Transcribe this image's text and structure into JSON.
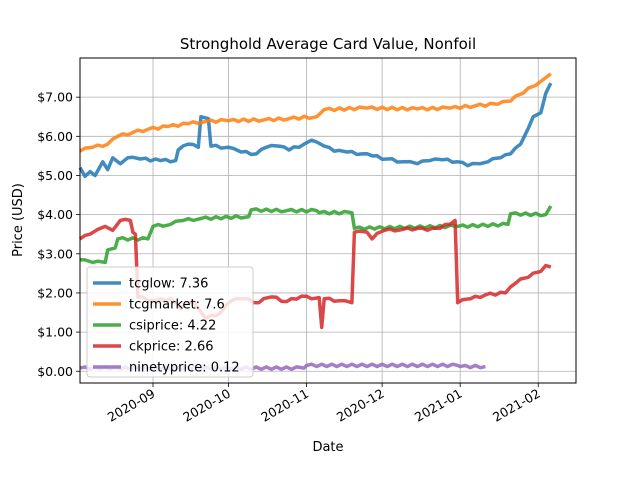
{
  "chart_data": {
    "type": "line",
    "title": "Stronghold Average Card Value, Nonfoil",
    "xlabel": "Date",
    "ylabel": "Price (USD)",
    "xlim": [
      "2020-08-03",
      "2021-02-16"
    ],
    "ylim": [
      -0.3,
      8.0
    ],
    "y_ticks": [
      0,
      1,
      2,
      3,
      4,
      5,
      6,
      7
    ],
    "y_tick_labels": [
      "$0.00",
      "$1.00",
      "$2.00",
      "$3.00",
      "$4.00",
      "$5.00",
      "$6.00",
      "$7.00"
    ],
    "x_ticks": [
      "2020-09-01",
      "2020-10-01",
      "2020-11-01",
      "2020-12-01",
      "2021-01-01",
      "2021-02-01"
    ],
    "x_tick_labels": [
      "2020-09",
      "2020-10",
      "2020-11",
      "2020-12",
      "2021-01",
      "2021-02"
    ],
    "grid": true,
    "legend_position": "lower-left",
    "series": [
      {
        "name": "tcglow: 7.36",
        "color": "#1f77b4",
        "points": [
          [
            "2020-08-03",
            5.2
          ],
          [
            "2020-08-05",
            4.98
          ],
          [
            "2020-08-07",
            5.1
          ],
          [
            "2020-08-09",
            5.0
          ],
          [
            "2020-08-12",
            5.35
          ],
          [
            "2020-08-14",
            5.15
          ],
          [
            "2020-08-16",
            5.45
          ],
          [
            "2020-08-19",
            5.3
          ],
          [
            "2020-08-22",
            5.45
          ],
          [
            "2020-08-27",
            5.42
          ],
          [
            "2020-09-04",
            5.38
          ],
          [
            "2020-09-10",
            5.38
          ],
          [
            "2020-09-11",
            5.65
          ],
          [
            "2020-09-15",
            5.8
          ],
          [
            "2020-09-19",
            5.72
          ],
          [
            "2020-09-20",
            6.5
          ],
          [
            "2020-09-23",
            6.45
          ],
          [
            "2020-09-24",
            5.75
          ],
          [
            "2020-10-01",
            5.72
          ],
          [
            "2020-10-06",
            5.6
          ],
          [
            "2020-10-12",
            5.55
          ],
          [
            "2020-10-16",
            5.72
          ],
          [
            "2020-10-21",
            5.75
          ],
          [
            "2020-10-25",
            5.65
          ],
          [
            "2020-10-31",
            5.8
          ],
          [
            "2020-11-03",
            5.9
          ],
          [
            "2020-11-08",
            5.75
          ],
          [
            "2020-11-12",
            5.62
          ],
          [
            "2020-11-17",
            5.6
          ],
          [
            "2020-11-23",
            5.55
          ],
          [
            "2020-11-27",
            5.5
          ],
          [
            "2020-12-03",
            5.42
          ],
          [
            "2020-12-10",
            5.35
          ],
          [
            "2020-12-15",
            5.3
          ],
          [
            "2020-12-20",
            5.38
          ],
          [
            "2020-12-25",
            5.4
          ],
          [
            "2020-12-31",
            5.35
          ],
          [
            "2021-01-04",
            5.25
          ],
          [
            "2021-01-09",
            5.3
          ],
          [
            "2021-01-12",
            5.35
          ],
          [
            "2021-01-17",
            5.45
          ],
          [
            "2021-01-21",
            5.55
          ],
          [
            "2021-01-25",
            5.8
          ],
          [
            "2021-01-28",
            6.2
          ],
          [
            "2021-01-30",
            6.5
          ],
          [
            "2021-02-02",
            6.6
          ],
          [
            "2021-02-04",
            7.1
          ],
          [
            "2021-02-06",
            7.36
          ]
        ]
      },
      {
        "name": "tcgmarket: 7.6",
        "color": "#ff7f0e",
        "points": [
          [
            "2020-08-03",
            5.62
          ],
          [
            "2020-08-08",
            5.72
          ],
          [
            "2020-08-14",
            5.8
          ],
          [
            "2020-08-18",
            6.0
          ],
          [
            "2020-08-24",
            6.1
          ],
          [
            "2020-08-30",
            6.18
          ],
          [
            "2020-09-07",
            6.25
          ],
          [
            "2020-09-15",
            6.32
          ],
          [
            "2020-09-22",
            6.38
          ],
          [
            "2020-10-01",
            6.4
          ],
          [
            "2020-10-15",
            6.42
          ],
          [
            "2020-10-25",
            6.45
          ],
          [
            "2020-11-05",
            6.5
          ],
          [
            "2020-11-08",
            6.68
          ],
          [
            "2020-11-25",
            6.72
          ],
          [
            "2020-12-15",
            6.7
          ],
          [
            "2020-12-28",
            6.72
          ],
          [
            "2021-01-07",
            6.78
          ],
          [
            "2021-01-16",
            6.82
          ],
          [
            "2021-01-21",
            6.9
          ],
          [
            "2021-01-26",
            7.1
          ],
          [
            "2021-01-31",
            7.3
          ],
          [
            "2021-02-03",
            7.45
          ],
          [
            "2021-02-06",
            7.6
          ]
        ]
      },
      {
        "name": "csiprice: 4.22",
        "color": "#2ca02c",
        "points": [
          [
            "2020-08-03",
            2.85
          ],
          [
            "2020-08-08",
            2.78
          ],
          [
            "2020-08-13",
            2.78
          ],
          [
            "2020-08-14",
            3.1
          ],
          [
            "2020-08-17",
            3.15
          ],
          [
            "2020-08-18",
            3.38
          ],
          [
            "2020-08-30",
            3.38
          ],
          [
            "2020-09-01",
            3.7
          ],
          [
            "2020-09-08",
            3.75
          ],
          [
            "2020-09-13",
            3.85
          ],
          [
            "2020-09-20",
            3.9
          ],
          [
            "2020-10-09",
            3.95
          ],
          [
            "2020-10-10",
            4.12
          ],
          [
            "2020-10-24",
            4.1
          ],
          [
            "2020-11-05",
            4.1
          ],
          [
            "2020-11-06",
            4.05
          ],
          [
            "2020-11-19",
            4.05
          ],
          [
            "2020-11-20",
            3.65
          ],
          [
            "2020-12-31",
            3.7
          ],
          [
            "2021-01-20",
            3.75
          ],
          [
            "2021-01-21",
            4.02
          ],
          [
            "2021-02-04",
            4.0
          ],
          [
            "2021-02-06",
            4.22
          ]
        ]
      },
      {
        "name": "ckprice: 2.66",
        "color": "#d62728",
        "points": [
          [
            "2020-08-03",
            3.38
          ],
          [
            "2020-08-07",
            3.5
          ],
          [
            "2020-08-10",
            3.62
          ],
          [
            "2020-08-13",
            3.7
          ],
          [
            "2020-08-16",
            3.6
          ],
          [
            "2020-08-19",
            3.85
          ],
          [
            "2020-08-23",
            3.85
          ],
          [
            "2020-08-24",
            3.55
          ],
          [
            "2020-08-25",
            3.5
          ],
          [
            "2020-08-26",
            1.9
          ],
          [
            "2020-09-02",
            1.8
          ],
          [
            "2020-09-08",
            1.85
          ],
          [
            "2020-09-12",
            1.6
          ],
          [
            "2020-09-17",
            1.78
          ],
          [
            "2020-09-22",
            1.35
          ],
          [
            "2020-09-28",
            1.5
          ],
          [
            "2020-10-02",
            1.8
          ],
          [
            "2020-10-07",
            1.85
          ],
          [
            "2020-10-13",
            1.75
          ],
          [
            "2020-10-18",
            1.9
          ],
          [
            "2020-10-24",
            1.78
          ],
          [
            "2020-10-30",
            1.92
          ],
          [
            "2020-11-03",
            1.85
          ],
          [
            "2020-11-06",
            1.88
          ],
          [
            "2020-11-07",
            1.12
          ],
          [
            "2020-11-08",
            1.85
          ],
          [
            "2020-11-14",
            1.8
          ],
          [
            "2020-11-19",
            1.75
          ],
          [
            "2020-11-20",
            3.55
          ],
          [
            "2020-11-25",
            3.55
          ],
          [
            "2020-11-27",
            3.38
          ],
          [
            "2020-12-02",
            3.6
          ],
          [
            "2020-12-09",
            3.62
          ],
          [
            "2020-12-15",
            3.65
          ],
          [
            "2020-12-19",
            3.6
          ],
          [
            "2020-12-24",
            3.65
          ],
          [
            "2020-12-30",
            3.85
          ],
          [
            "2020-12-31",
            1.75
          ],
          [
            "2021-01-05",
            1.85
          ],
          [
            "2021-01-11",
            1.95
          ],
          [
            "2021-01-19",
            2.0
          ],
          [
            "2021-01-23",
            2.25
          ],
          [
            "2021-01-28",
            2.4
          ],
          [
            "2021-02-02",
            2.55
          ],
          [
            "2021-02-04",
            2.7
          ],
          [
            "2021-02-06",
            2.66
          ]
        ]
      },
      {
        "name": "ninetyprice: 0.12",
        "color": "#9467bd",
        "points": [
          [
            "2020-08-03",
            0.08
          ],
          [
            "2020-10-31",
            0.08
          ],
          [
            "2020-11-01",
            0.15
          ],
          [
            "2020-12-31",
            0.15
          ],
          [
            "2021-01-01",
            0.12
          ],
          [
            "2021-01-11",
            0.12
          ]
        ]
      }
    ]
  }
}
